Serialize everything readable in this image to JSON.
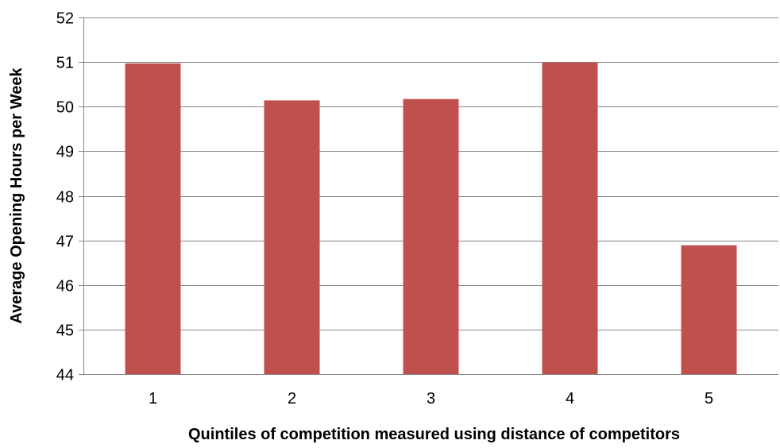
{
  "chart_data": {
    "type": "bar",
    "title": "",
    "xlabel": "Quintiles  of competition measured using distance of competitors",
    "ylabel": "Average Opening Hours per Week",
    "categories": [
      "1",
      "2",
      "3",
      "4",
      "5"
    ],
    "values": [
      50.97,
      50.14,
      50.17,
      50.99,
      46.89
    ],
    "ylim": [
      44,
      52
    ],
    "yticks": [
      "44",
      "45",
      "46",
      "47",
      "48",
      "49",
      "50",
      "51",
      "52"
    ],
    "grid": true,
    "legend": "none",
    "bar_color": "#c0504d",
    "grid_color": "#868686"
  }
}
